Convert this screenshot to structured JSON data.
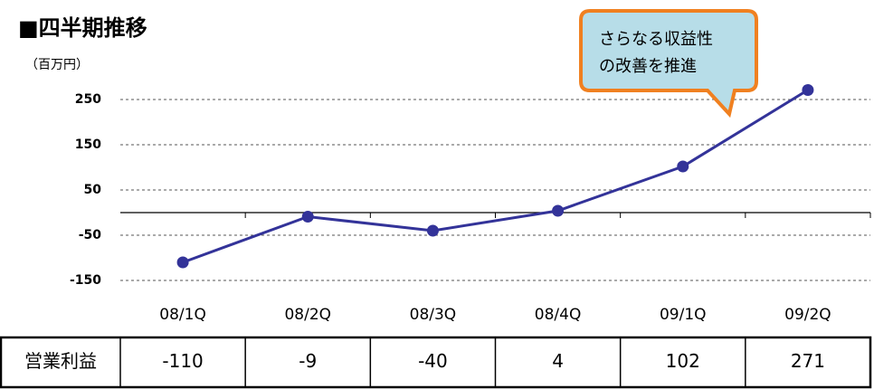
{
  "chart_data": {
    "type": "line",
    "title": "■四半期推移",
    "y_label": "（百万円）",
    "categories": [
      "08/1Q",
      "08/2Q",
      "08/3Q",
      "08/4Q",
      "09/1Q",
      "09/2Q"
    ],
    "series": [
      {
        "name": "営業利益",
        "color": "#333399",
        "values": [
          -110,
          -9,
          -40,
          4,
          102,
          271
        ]
      }
    ],
    "ylim": [
      -150,
      300
    ],
    "yticks": [
      -150,
      -50,
      50,
      150,
      250
    ],
    "grid": true,
    "annotation": [
      "さらなる収益性",
      "の改善を推進"
    ]
  }
}
